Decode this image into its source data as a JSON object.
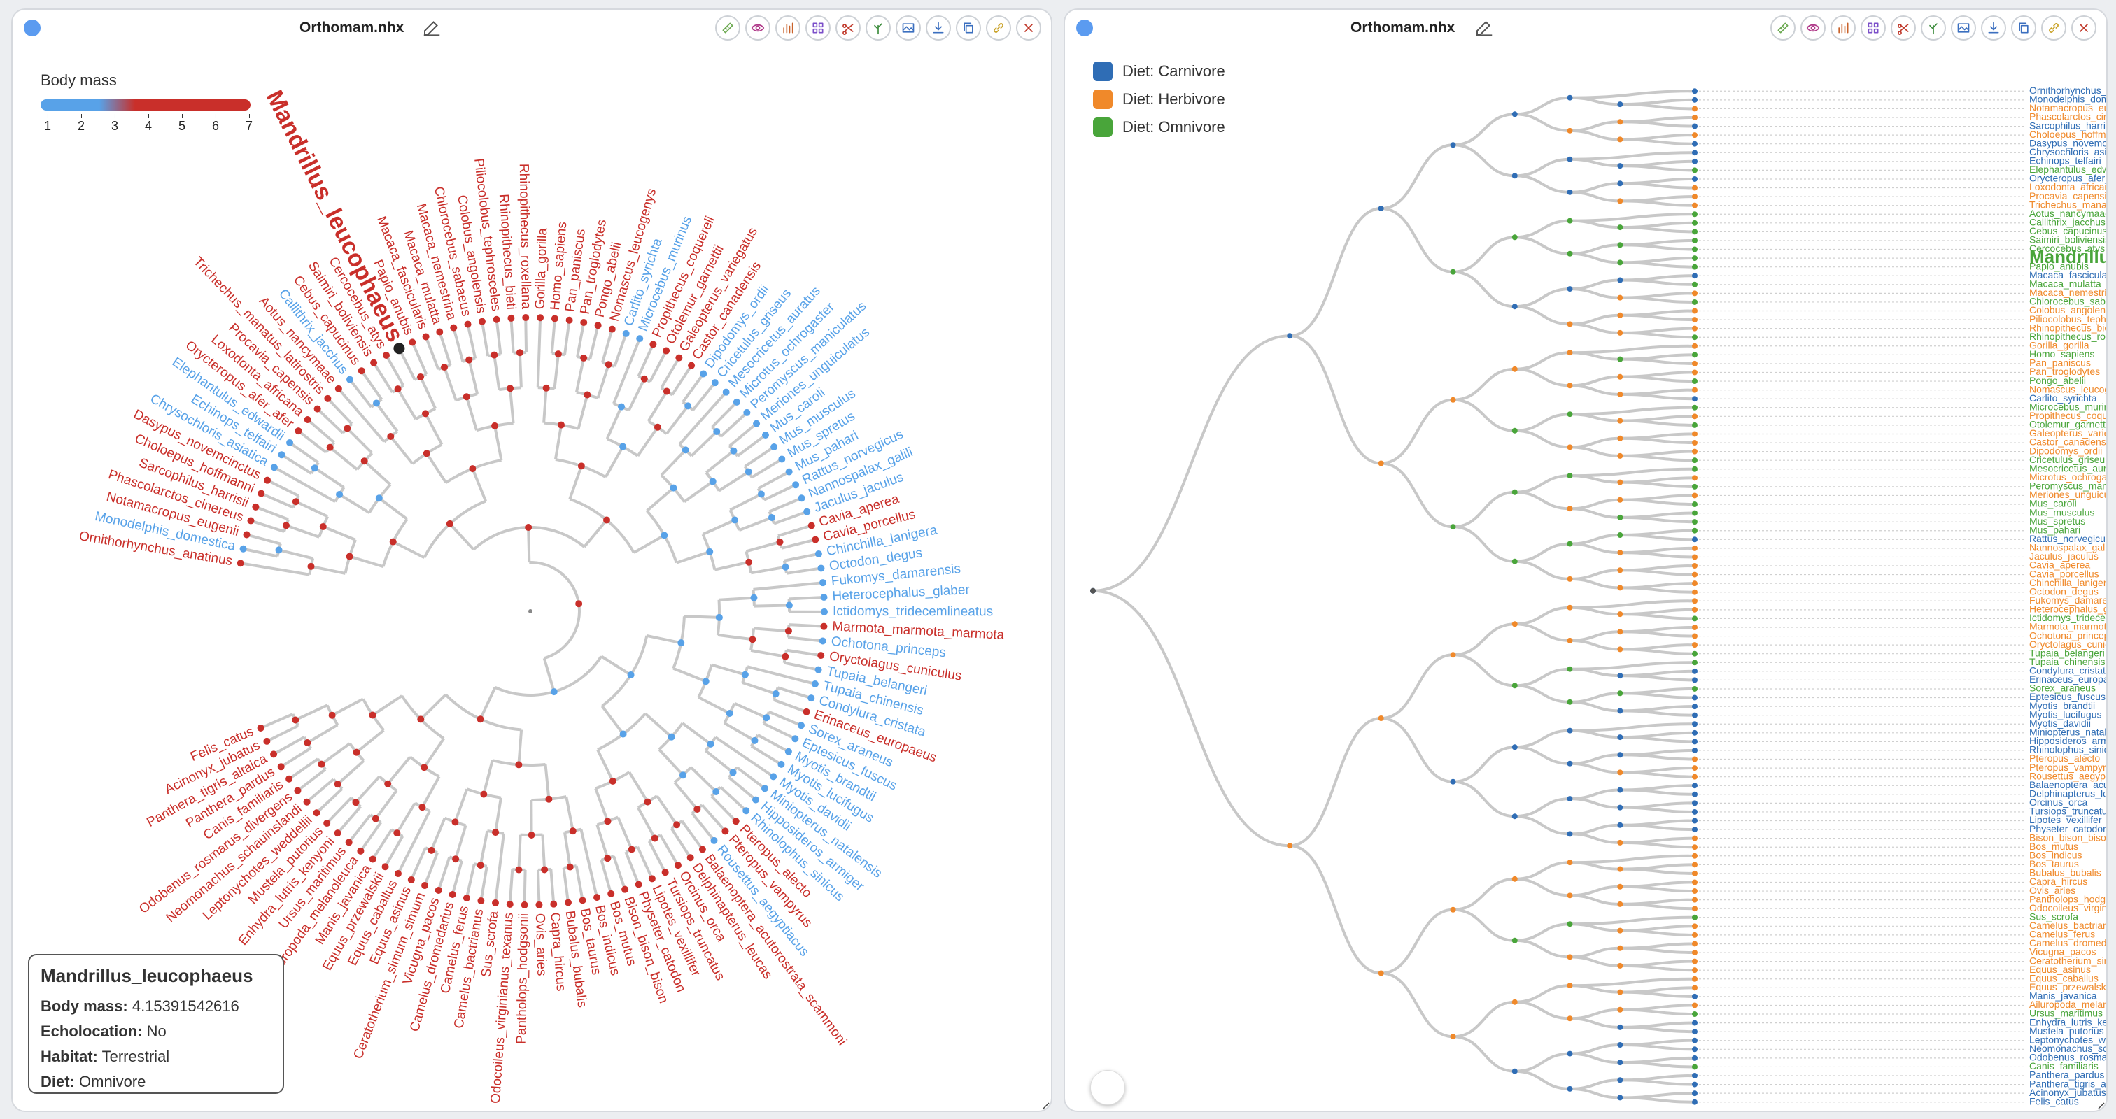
{
  "left": {
    "title": "Orthomam.nhx",
    "legend": {
      "title": "Body mass",
      "ticks": [
        "1",
        "2",
        "3",
        "4",
        "5",
        "6",
        "7"
      ]
    },
    "highlight": "Mandrillus_leucophaeus",
    "info": {
      "name": "Mandrillus_leucophaeus",
      "rows": [
        {
          "key": "Body mass:",
          "val": "4.15391542616"
        },
        {
          "key": "Echolocation:",
          "val": "No"
        },
        {
          "key": "Habitat:",
          "val": "Terrestrial"
        },
        {
          "key": "Diet:",
          "val": "Omnivore"
        }
      ]
    }
  },
  "right": {
    "title": "Orthomam.nhx",
    "legend": [
      {
        "label": "Diet: Carnivore",
        "color": "#2f6db5"
      },
      {
        "label": "Diet: Herbivore",
        "color": "#f0892a"
      },
      {
        "label": "Diet: Omnivore",
        "color": "#49a53a"
      }
    ],
    "highlight": "Mandrillus_leucophaeus"
  },
  "colors": {
    "carnivore": "#2f6db5",
    "herbivore": "#f0892a",
    "omnivore": "#49a53a",
    "massHigh": "#c92f2a",
    "massLow": "#58a2e8",
    "branch": "#c8c8c8"
  },
  "toolbar_icons": [
    "ruler-icon",
    "eye-icon",
    "bar-chart-icon",
    "grid-icon",
    "scissors-icon",
    "tree-icon",
    "image-icon",
    "download-icon",
    "copy-icon",
    "link-icon",
    "close-icon"
  ],
  "species": [
    {
      "n": "Ornithorhynchus_anatinus",
      "d": "c",
      "m": "h"
    },
    {
      "n": "Monodelphis_domestica",
      "d": "c",
      "m": "l"
    },
    {
      "n": "Notamacropus_eugenii",
      "d": "h",
      "m": "h"
    },
    {
      "n": "Phascolarctos_cinereus",
      "d": "h",
      "m": "h"
    },
    {
      "n": "Sarcophilus_harrisii",
      "d": "c",
      "m": "h"
    },
    {
      "n": "Choloepus_hoffmanni",
      "d": "h",
      "m": "h"
    },
    {
      "n": "Dasypus_novemcinctus",
      "d": "c",
      "m": "h"
    },
    {
      "n": "Chrysochloris_asiatica",
      "d": "c",
      "m": "l"
    },
    {
      "n": "Echinops_telfairi",
      "d": "c",
      "m": "l"
    },
    {
      "n": "Elephantulus_edwardii",
      "d": "o",
      "m": "l"
    },
    {
      "n": "Orycteropus_afer_afer",
      "d": "c",
      "m": "h"
    },
    {
      "n": "Loxodonta_africana",
      "d": "h",
      "m": "h"
    },
    {
      "n": "Procavia_capensis",
      "d": "h",
      "m": "h"
    },
    {
      "n": "Trichechus_manatus_latirostris",
      "d": "h",
      "m": "h"
    },
    {
      "n": "Aotus_nancymaae",
      "d": "o",
      "m": "h"
    },
    {
      "n": "Callithrix_jacchus",
      "d": "o",
      "m": "l"
    },
    {
      "n": "Cebus_capucinus",
      "d": "o",
      "m": "h"
    },
    {
      "n": "Saimiri_boliviensis",
      "d": "o",
      "m": "h"
    },
    {
      "n": "Cercocebus_atys",
      "d": "o",
      "m": "h"
    },
    {
      "n": "Mandrillus_leucophaeus",
      "d": "o",
      "m": "h"
    },
    {
      "n": "Papio_anubis",
      "d": "o",
      "m": "h"
    },
    {
      "n": "Macaca_fascicularis",
      "d": "c",
      "m": "h"
    },
    {
      "n": "Macaca_mulatta",
      "d": "o",
      "m": "h"
    },
    {
      "n": "Macaca_nemestrina",
      "d": "h",
      "m": "h"
    },
    {
      "n": "Chlorocebus_sabaeus",
      "d": "o",
      "m": "h"
    },
    {
      "n": "Colobus_angolensis",
      "d": "h",
      "m": "h"
    },
    {
      "n": "Piliocolobus_tephrosceles",
      "d": "h",
      "m": "h"
    },
    {
      "n": "Rhinopithecus_bieti",
      "d": "h",
      "m": "h"
    },
    {
      "n": "Rhinopithecus_roxellana",
      "d": "o",
      "m": "h"
    },
    {
      "n": "Gorilla_gorilla",
      "d": "h",
      "m": "h"
    },
    {
      "n": "Homo_sapiens",
      "d": "o",
      "m": "h"
    },
    {
      "n": "Pan_paniscus",
      "d": "h",
      "m": "h"
    },
    {
      "n": "Pan_troglodytes",
      "d": "h",
      "m": "h"
    },
    {
      "n": "Pongo_abelii",
      "d": "o",
      "m": "h"
    },
    {
      "n": "Nomascus_leucogenys",
      "d": "h",
      "m": "h"
    },
    {
      "n": "Carlito_syrichta",
      "d": "c",
      "m": "l"
    },
    {
      "n": "Microcebus_murinus",
      "d": "o",
      "m": "l"
    },
    {
      "n": "Propithecus_coquereli",
      "d": "h",
      "m": "h"
    },
    {
      "n": "Otolemur_garnettii",
      "d": "o",
      "m": "h"
    },
    {
      "n": "Galeopterus_variegatus",
      "d": "h",
      "m": "h"
    },
    {
      "n": "Castor_canadensis",
      "d": "h",
      "m": "h"
    },
    {
      "n": "Dipodomys_ordii",
      "d": "h",
      "m": "l"
    },
    {
      "n": "Cricetulus_griseus",
      "d": "o",
      "m": "l"
    },
    {
      "n": "Mesocricetus_auratus",
      "d": "o",
      "m": "l"
    },
    {
      "n": "Microtus_ochrogaster",
      "d": "h",
      "m": "l"
    },
    {
      "n": "Peromyscus_maniculatus",
      "d": "o",
      "m": "l"
    },
    {
      "n": "Meriones_unguiculatus",
      "d": "h",
      "m": "l"
    },
    {
      "n": "Mus_caroli",
      "d": "o",
      "m": "l"
    },
    {
      "n": "Mus_musculus",
      "d": "o",
      "m": "l"
    },
    {
      "n": "Mus_spretus",
      "d": "o",
      "m": "l"
    },
    {
      "n": "Mus_pahari",
      "d": "o",
      "m": "l"
    },
    {
      "n": "Rattus_norvegicus",
      "d": "c",
      "m": "l"
    },
    {
      "n": "Nannospalax_galili",
      "d": "h",
      "m": "l"
    },
    {
      "n": "Jaculus_jaculus",
      "d": "h",
      "m": "l"
    },
    {
      "n": "Cavia_aperea",
      "d": "h",
      "m": "h"
    },
    {
      "n": "Cavia_porcellus",
      "d": "h",
      "m": "h"
    },
    {
      "n": "Chinchilla_lanigera",
      "d": "h",
      "m": "l"
    },
    {
      "n": "Octodon_degus",
      "d": "h",
      "m": "l"
    },
    {
      "n": "Fukomys_damarensis",
      "d": "h",
      "m": "l"
    },
    {
      "n": "Heterocephalus_glaber",
      "d": "h",
      "m": "l"
    },
    {
      "n": "Ictidomys_tridecemlineatus",
      "d": "o",
      "m": "l"
    },
    {
      "n": "Marmota_marmota_marmota",
      "d": "h",
      "m": "h"
    },
    {
      "n": "Ochotona_princeps",
      "d": "h",
      "m": "l"
    },
    {
      "n": "Oryctolagus_cuniculus",
      "d": "h",
      "m": "h"
    },
    {
      "n": "Tupaia_belangeri",
      "d": "o",
      "m": "l"
    },
    {
      "n": "Tupaia_chinensis",
      "d": "o",
      "m": "l"
    },
    {
      "n": "Condylura_cristata",
      "d": "c",
      "m": "l"
    },
    {
      "n": "Erinaceus_europaeus",
      "d": "c",
      "m": "h"
    },
    {
      "n": "Sorex_araneus",
      "d": "o",
      "m": "l"
    },
    {
      "n": "Eptesicus_fuscus",
      "d": "c",
      "m": "l"
    },
    {
      "n": "Myotis_brandtii",
      "d": "c",
      "m": "l"
    },
    {
      "n": "Myotis_lucifugus",
      "d": "c",
      "m": "l"
    },
    {
      "n": "Myotis_davidii",
      "d": "c",
      "m": "l"
    },
    {
      "n": "Miniopterus_natalensis",
      "d": "c",
      "m": "l"
    },
    {
      "n": "Hipposideros_armiger",
      "d": "c",
      "m": "l"
    },
    {
      "n": "Rhinolophus_sinicus",
      "d": "c",
      "m": "l"
    },
    {
      "n": "Pteropus_alecto",
      "d": "h",
      "m": "h"
    },
    {
      "n": "Pteropus_vampyrus",
      "d": "h",
      "m": "h"
    },
    {
      "n": "Rousettus_aegyptiacus",
      "d": "h",
      "m": "l"
    },
    {
      "n": "Balaenoptera_acutorostrata_scammoni",
      "d": "c",
      "m": "h"
    },
    {
      "n": "Delphinapterus_leucas",
      "d": "c",
      "m": "h"
    },
    {
      "n": "Orcinus_orca",
      "d": "c",
      "m": "h"
    },
    {
      "n": "Tursiops_truncatus",
      "d": "c",
      "m": "h"
    },
    {
      "n": "Lipotes_vexillifer",
      "d": "c",
      "m": "h"
    },
    {
      "n": "Physeter_catodon",
      "d": "c",
      "m": "h"
    },
    {
      "n": "Bison_bison_bison",
      "d": "h",
      "m": "h"
    },
    {
      "n": "Bos_mutus",
      "d": "h",
      "m": "h"
    },
    {
      "n": "Bos_indicus",
      "d": "h",
      "m": "h"
    },
    {
      "n": "Bos_taurus",
      "d": "h",
      "m": "h"
    },
    {
      "n": "Bubalus_bubalis",
      "d": "h",
      "m": "h"
    },
    {
      "n": "Capra_hircus",
      "d": "h",
      "m": "h"
    },
    {
      "n": "Ovis_aries",
      "d": "h",
      "m": "h"
    },
    {
      "n": "Pantholops_hodgsonii",
      "d": "h",
      "m": "h"
    },
    {
      "n": "Odocoileus_virginianus_texanus",
      "d": "h",
      "m": "h"
    },
    {
      "n": "Sus_scrofa",
      "d": "o",
      "m": "h"
    },
    {
      "n": "Camelus_bactrianus",
      "d": "h",
      "m": "h"
    },
    {
      "n": "Camelus_ferus",
      "d": "h",
      "m": "h"
    },
    {
      "n": "Camelus_dromedarius",
      "d": "h",
      "m": "h"
    },
    {
      "n": "Vicugna_pacos",
      "d": "h",
      "m": "h"
    },
    {
      "n": "Ceratotherium_simum_simum",
      "d": "h",
      "m": "h"
    },
    {
      "n": "Equus_asinus",
      "d": "h",
      "m": "h"
    },
    {
      "n": "Equus_caballus",
      "d": "h",
      "m": "h"
    },
    {
      "n": "Equus_przewalskii",
      "d": "h",
      "m": "h"
    },
    {
      "n": "Manis_javanica",
      "d": "c",
      "m": "h"
    },
    {
      "n": "Ailuropoda_melanoleuca",
      "d": "h",
      "m": "h"
    },
    {
      "n": "Ursus_maritimus",
      "d": "o",
      "m": "h"
    },
    {
      "n": "Enhydra_lutris_kenyoni",
      "d": "c",
      "m": "h"
    },
    {
      "n": "Mustela_putorius",
      "d": "c",
      "m": "h"
    },
    {
      "n": "Leptonychotes_weddellii",
      "d": "c",
      "m": "h"
    },
    {
      "n": "Neomonachus_schauinslandi",
      "d": "c",
      "m": "h"
    },
    {
      "n": "Odobenus_rosmarus_divergens",
      "d": "c",
      "m": "h"
    },
    {
      "n": "Canis_familiaris",
      "d": "o",
      "m": "h"
    },
    {
      "n": "Panthera_pardus",
      "d": "c",
      "m": "h"
    },
    {
      "n": "Panthera_tigris_altaica",
      "d": "c",
      "m": "h"
    },
    {
      "n": "Acinonyx_jubatus",
      "d": "c",
      "m": "h"
    },
    {
      "n": "Felis_catus",
      "d": "c",
      "m": "h"
    }
  ]
}
